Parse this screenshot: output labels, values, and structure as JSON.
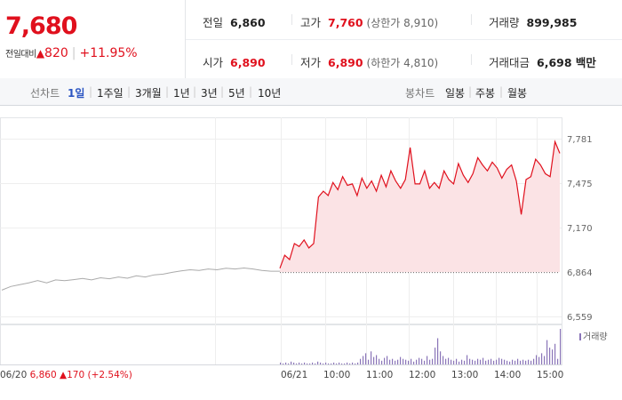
{
  "header": {
    "price": "7,680",
    "change_label": "전일대비",
    "change_arrow": "▲",
    "change_value": "820",
    "change_pct": "+11.95%",
    "stats": [
      {
        "key": "전일",
        "value": "6,860",
        "sub": ""
      },
      {
        "key": "고가",
        "value": "7,760",
        "sub": "(상한가 8,910)"
      },
      {
        "key": "거래량",
        "value": "899,985",
        "sub": ""
      },
      {
        "key": "시가",
        "value": "6,890",
        "sub": ""
      },
      {
        "key": "저가",
        "value": "6,890",
        "sub": "(하한가 4,810)"
      },
      {
        "key": "거래대금",
        "value": "6,698 백만",
        "sub": ""
      }
    ]
  },
  "line_tabs": {
    "label": "선차트",
    "items": [
      "1일",
      "1주일",
      "3개월",
      "1년",
      "3년",
      "5년",
      "10년"
    ],
    "selected": 0
  },
  "candle_tabs": {
    "label": "봉차트",
    "items": [
      "일봉",
      "주봉",
      "월봉"
    ]
  },
  "colors": {
    "up": "#e0101d",
    "fill": "#fbe3e5",
    "prev": "#aaaaaa",
    "volume": "#8a75b8",
    "selected_tab": "#2b55c2"
  },
  "chart_data": {
    "type": "line",
    "y_ticks": [
      "7,781",
      "7,475",
      "7,170",
      "6,864",
      "6,559"
    ],
    "ylim": [
      6559,
      7781
    ],
    "baseline": 6864,
    "x_ticks": [
      "06/20",
      "06/21",
      "10:00",
      "11:00",
      "12:00",
      "13:00",
      "14:00",
      "15:00"
    ],
    "prev_day": {
      "label": "06/20",
      "close": "6,860",
      "arrow": "▲",
      "change": "170",
      "pct": "(+2.54%)",
      "values": [
        6740,
        6765,
        6778,
        6790,
        6805,
        6790,
        6810,
        6805,
        6812,
        6820,
        6810,
        6825,
        6818,
        6830,
        6822,
        6838,
        6830,
        6845,
        6850,
        6862,
        6872,
        6880,
        6875,
        6885,
        6880,
        6890,
        6885,
        6892,
        6885,
        6875,
        6870,
        6870
      ]
    },
    "today": {
      "values": [
        6890,
        6980,
        6950,
        7060,
        7040,
        7085,
        7030,
        7060,
        7380,
        7420,
        7390,
        7480,
        7430,
        7520,
        7460,
        7470,
        7390,
        7510,
        7440,
        7490,
        7420,
        7530,
        7450,
        7560,
        7490,
        7440,
        7500,
        7720,
        7470,
        7470,
        7560,
        7440,
        7480,
        7440,
        7560,
        7500,
        7470,
        7610,
        7530,
        7480,
        7540,
        7650,
        7600,
        7560,
        7620,
        7580,
        7510,
        7570,
        7600,
        7490,
        7260,
        7500,
        7520,
        7640,
        7600,
        7540,
        7520,
        7760,
        7680
      ]
    },
    "volume_label": "거래량",
    "volume": [
      2,
      1,
      2,
      1,
      3,
      2,
      1,
      2,
      1,
      2,
      1,
      1,
      2,
      1,
      3,
      2,
      1,
      2,
      1,
      1,
      2,
      1,
      2,
      1,
      1,
      2,
      1,
      2,
      1,
      2,
      6,
      9,
      12,
      5,
      14,
      8,
      10,
      6,
      4,
      7,
      9,
      5,
      6,
      4,
      5,
      8,
      6,
      5,
      4,
      6,
      3,
      5,
      7,
      6,
      4,
      9,
      5,
      6,
      18,
      28,
      14,
      9,
      6,
      7,
      5,
      4,
      6,
      3,
      5,
      4,
      10,
      6,
      5,
      4,
      6,
      5,
      7,
      4,
      5,
      6,
      4,
      5,
      7,
      6,
      5,
      4,
      3,
      5,
      4,
      6,
      4,
      5,
      4,
      5,
      4,
      6,
      10,
      8,
      12,
      9,
      26,
      18,
      16,
      22,
      6,
      38
    ]
  }
}
